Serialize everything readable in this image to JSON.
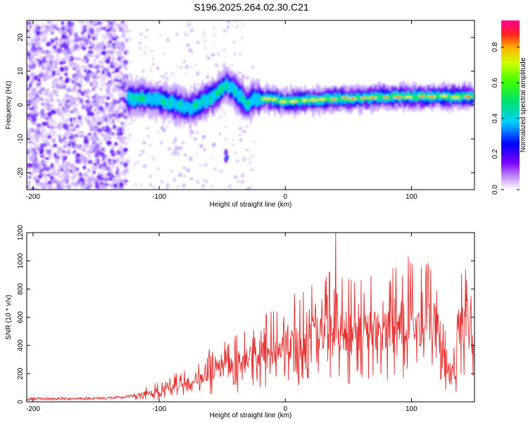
{
  "chart_data": [
    {
      "type": "heatmap",
      "title": "S196.2025.264.02.30.C21",
      "xlabel": "Height of straight line (km)",
      "ylabel": "Frequency (Hz)",
      "xlim": [
        -205,
        150
      ],
      "ylim": [
        -25,
        25
      ],
      "xticks": [
        -200,
        -100,
        0,
        100
      ],
      "yticks": [
        -20,
        -10,
        0,
        10,
        20
      ],
      "ridge": {
        "description_points_x": [
          -125,
          -110,
          -95,
          -85,
          -75,
          -65,
          -55,
          -48,
          -42,
          -35,
          -30,
          -25,
          -15,
          0,
          20,
          40,
          60,
          80,
          100,
          120,
          150
        ],
        "frequency_hz": [
          2,
          2,
          1,
          0,
          -1,
          1,
          3,
          6,
          5,
          2,
          0,
          2,
          2,
          1,
          1.5,
          2,
          2,
          2.5,
          2.5,
          2.5,
          2.5
        ]
      },
      "colorbar": {
        "label": "Normalized spectral amplitude",
        "range": [
          0,
          0.95
        ],
        "ticks": [
          0.0,
          0.2,
          0.4,
          0.6,
          0.8
        ],
        "tick_labels": [
          "0.0",
          "0.2",
          "0.4",
          "0.6",
          "0.8"
        ]
      }
    },
    {
      "type": "line",
      "title": "",
      "xlabel": "Height of straight line (km)",
      "ylabel": "SNR (10 * v/v)",
      "xlim": [
        -205,
        150
      ],
      "ylim": [
        0,
        1200
      ],
      "xticks": [
        -200,
        -100,
        0,
        100
      ],
      "yticks": [
        0,
        200,
        400,
        600,
        800,
        1000,
        1200
      ],
      "series": [
        {
          "name": "SNR",
          "color": "#e83030",
          "x": [
            -205,
            -180,
            -150,
            -130,
            -120,
            -110,
            -100,
            -90,
            -80,
            -70,
            -60,
            -50,
            -40,
            -30,
            -20,
            -10,
            0,
            10,
            20,
            30,
            40,
            50,
            60,
            70,
            80,
            90,
            100,
            110,
            115,
            120,
            125,
            130,
            135,
            140,
            145,
            150
          ],
          "values": [
            20,
            22,
            25,
            30,
            45,
            60,
            80,
            110,
            130,
            160,
            210,
            240,
            260,
            290,
            330,
            360,
            400,
            440,
            460,
            500,
            520,
            500,
            510,
            520,
            540,
            560,
            580,
            560,
            600,
            540,
            420,
            200,
            250,
            580,
            600,
            350
          ]
        }
      ],
      "peaks": [
        {
          "x": 40,
          "value": 1220
        },
        {
          "x": 143,
          "value": 940
        },
        {
          "x": 35,
          "value": 920
        },
        {
          "x": -15,
          "value": 620
        }
      ]
    }
  ]
}
